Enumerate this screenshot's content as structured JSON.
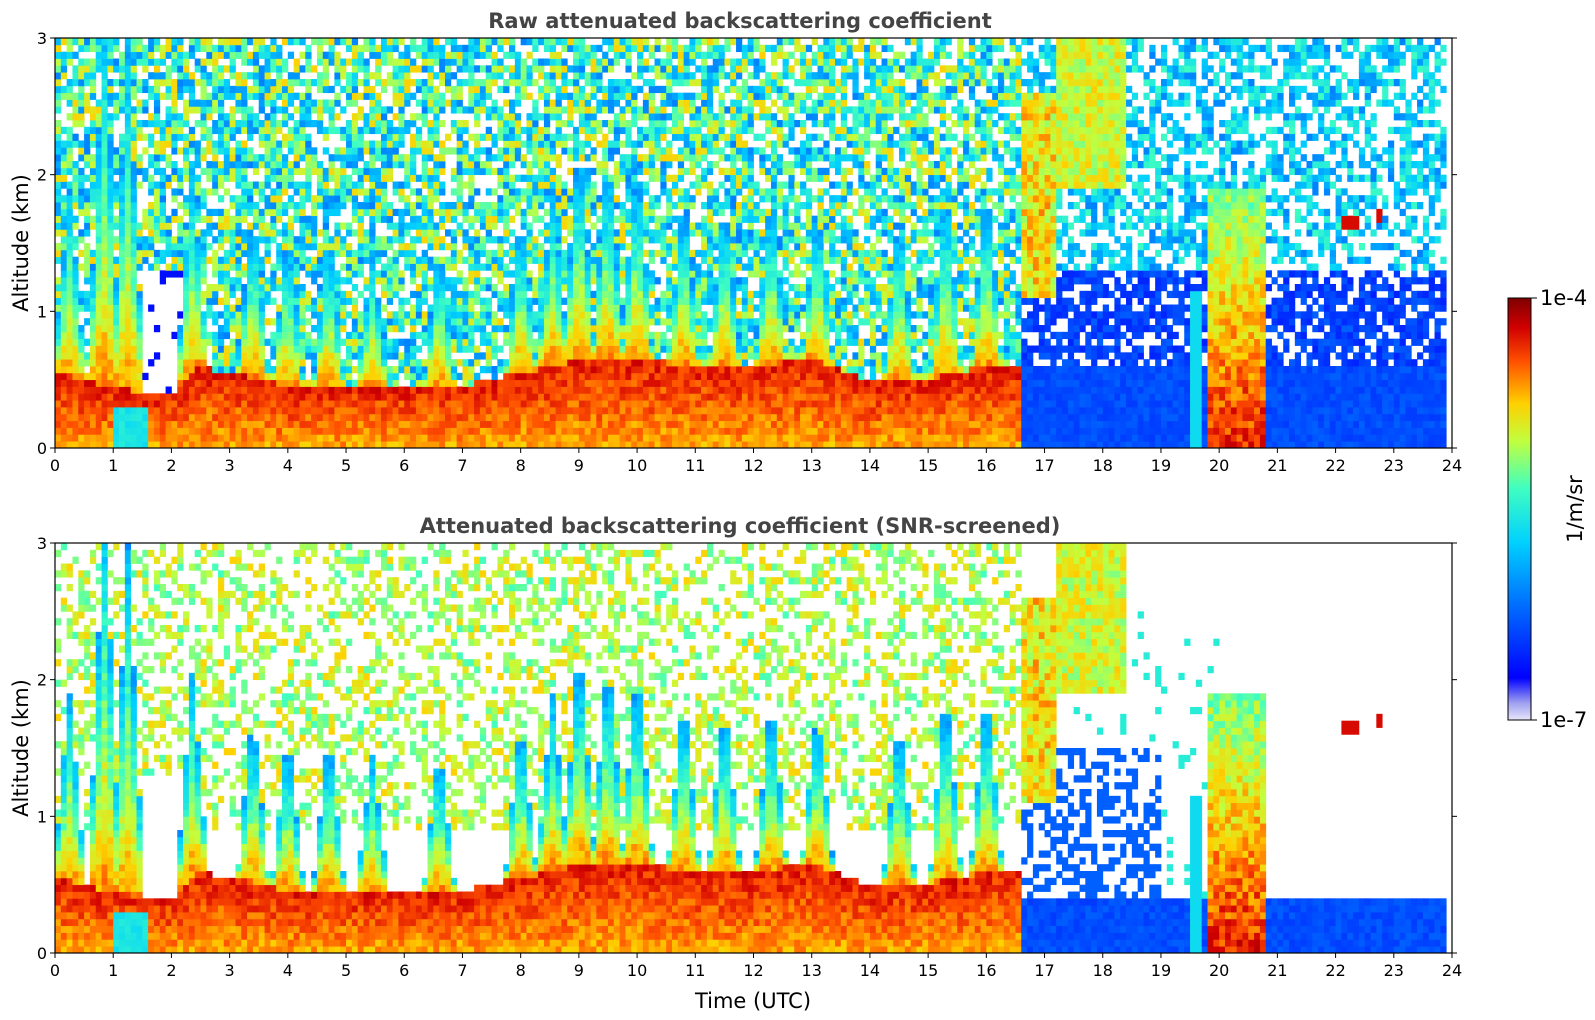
{
  "chart_data": [
    {
      "type": "heatmap",
      "title": "Raw attenuated backscattering coefficient",
      "xlabel": "",
      "ylabel": "Altitude (km)",
      "xlim": [
        0,
        24
      ],
      "ylim": [
        0,
        3
      ],
      "x_ticks": [
        "0",
        "1",
        "2",
        "3",
        "4",
        "5",
        "6",
        "7",
        "8",
        "9",
        "10",
        "11",
        "12",
        "13",
        "14",
        "15",
        "16",
        "17",
        "18",
        "19",
        "20",
        "21",
        "22",
        "23",
        "24"
      ],
      "y_ticks": [
        "0",
        "1",
        "2",
        "3"
      ],
      "screened": false,
      "data_end_hour": 23.85,
      "boundary_layer_top_km": [
        [
          0.0,
          0.55
        ],
        [
          0.5,
          0.5
        ],
        [
          1.0,
          0.45
        ],
        [
          1.5,
          0.4
        ],
        [
          2.0,
          0.4
        ],
        [
          2.5,
          0.6
        ],
        [
          3.0,
          0.55
        ],
        [
          4.0,
          0.45
        ],
        [
          5.0,
          0.45
        ],
        [
          6.0,
          0.45
        ],
        [
          7.0,
          0.45
        ],
        [
          8.0,
          0.55
        ],
        [
          9.0,
          0.65
        ],
        [
          10.0,
          0.65
        ],
        [
          11.0,
          0.6
        ],
        [
          12.0,
          0.6
        ],
        [
          13.0,
          0.65
        ],
        [
          14.0,
          0.5
        ],
        [
          15.0,
          0.5
        ],
        [
          16.0,
          0.6
        ],
        [
          16.6,
          0.6
        ]
      ],
      "plumes": [
        {
          "t": 0.25,
          "top": 1.4
        },
        {
          "t": 0.85,
          "top": 2.9
        },
        {
          "t": 1.25,
          "top": 2.6
        },
        {
          "t": 2.35,
          "top": 1.5
        },
        {
          "t": 3.4,
          "top": 1.3
        },
        {
          "t": 4.0,
          "top": 1.2
        },
        {
          "t": 4.7,
          "top": 1.2
        },
        {
          "t": 5.45,
          "top": 1.0
        },
        {
          "t": 6.6,
          "top": 1.1
        },
        {
          "t": 8.0,
          "top": 1.2
        },
        {
          "t": 8.55,
          "top": 1.3
        },
        {
          "t": 9.0,
          "top": 1.7
        },
        {
          "t": 9.5,
          "top": 1.6
        },
        {
          "t": 10.0,
          "top": 1.5
        },
        {
          "t": 10.8,
          "top": 1.3
        },
        {
          "t": 11.5,
          "top": 1.3
        },
        {
          "t": 12.3,
          "top": 1.3
        },
        {
          "t": 13.1,
          "top": 1.2
        },
        {
          "t": 14.5,
          "top": 1.3
        },
        {
          "t": 15.3,
          "top": 1.5
        },
        {
          "t": 16.0,
          "top": 1.4
        }
      ],
      "features": [
        {
          "name": "elevated aerosol layer",
          "t_start": 16.6,
          "t_end": 17.2,
          "alt_bottom": 1.1,
          "alt_top": 2.6
        },
        {
          "name": "high aerosol layer",
          "t_start": 17.2,
          "t_end": 18.4,
          "alt_bottom": 1.9,
          "alt_top": 3.0
        },
        {
          "name": "dense layer",
          "t_start": 17.35,
          "t_end": 17.75,
          "alt_bottom": 2.6,
          "alt_top": 3.0
        },
        {
          "name": "precipitation streak",
          "t_start": 19.55,
          "t_end": 19.7,
          "alt_bottom": 0.0,
          "alt_top": 1.15
        },
        {
          "name": "convective plume",
          "t_start": 19.8,
          "t_end": 20.75,
          "alt_bottom": 0.0,
          "alt_top": 1.9
        },
        {
          "name": "elevated cloud",
          "t_start": 22.05,
          "t_end": 22.35,
          "alt_bottom": 1.6,
          "alt_top": 1.72
        },
        {
          "name": "elevated cloud",
          "t_start": 22.7,
          "t_end": 22.8,
          "alt_bottom": 1.65,
          "alt_top": 1.75
        },
        {
          "name": "elevated cloud",
          "t_start": 18.35,
          "t_end": 18.45,
          "alt_bottom": 1.4,
          "alt_top": 1.5
        }
      ]
    },
    {
      "type": "heatmap",
      "title": "Attenuated backscattering coefficient (SNR-screened)",
      "xlabel": "Time (UTC)",
      "ylabel": "Altitude (km)",
      "xlim": [
        0,
        24
      ],
      "ylim": [
        0,
        3
      ],
      "x_ticks": [
        "0",
        "1",
        "2",
        "3",
        "4",
        "5",
        "6",
        "7",
        "8",
        "9",
        "10",
        "11",
        "12",
        "13",
        "14",
        "15",
        "16",
        "17",
        "18",
        "19",
        "20",
        "21",
        "22",
        "23",
        "24"
      ],
      "y_ticks": [
        "0",
        "1",
        "2",
        "3"
      ],
      "screened": true,
      "data_end_hour": 23.85,
      "screened_top_after_17h_km": 0.38
    }
  ],
  "colorbar": {
    "min_label": "1e-7",
    "max_label": "1e-4",
    "label": "1/m/sr",
    "scale": "log",
    "colormap": "jet",
    "min_color": "#e6e6fa",
    "max_color": "#7f0000"
  }
}
